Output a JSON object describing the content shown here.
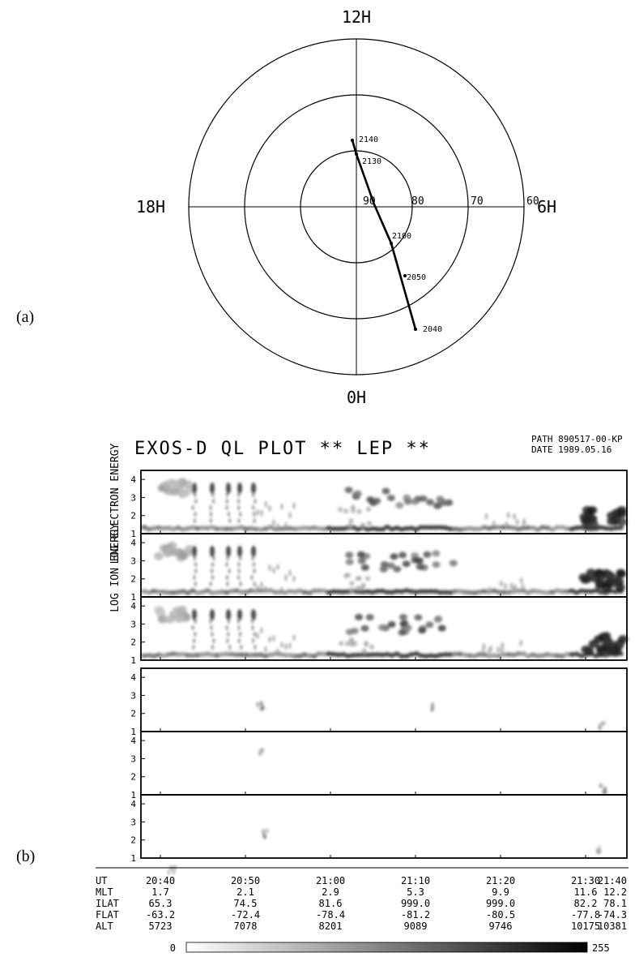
{
  "panel_labels": {
    "a": "(a)",
    "b": "(b)"
  },
  "polar": {
    "hour_labels": {
      "top": "12H",
      "left": "18H",
      "right": "6H",
      "bottom": "0H"
    },
    "lat_labels": [
      "90",
      "80",
      "70",
      "60"
    ],
    "track_times": [
      "2140",
      "2130",
      "2100",
      "2050",
      "2040"
    ]
  },
  "header": {
    "title": "EXOS-D QL PLOT ** LEP **",
    "path": "PATH 890517-00-KP",
    "date": "DATE 1989.05.16"
  },
  "axes": {
    "electron_ylabel": "LOG ELECTRON ENERGY",
    "ion_ylabel": "LOG ION ENERGY",
    "y_ticks": [
      "1",
      "2",
      "3",
      "4"
    ]
  },
  "orbit_table": {
    "rows": [
      {
        "name": "UT",
        "values": [
          "20:40",
          "20:50",
          "21:00",
          "21:10",
          "21:20",
          "21:30",
          "21:40"
        ]
      },
      {
        "name": "MLT",
        "values": [
          "1.7",
          "2.1",
          "2.9",
          "5.3",
          "9.9",
          "11.6",
          "12.2"
        ]
      },
      {
        "name": "ILAT",
        "values": [
          "65.3",
          "74.5",
          "81.6",
          "999.0",
          "999.0",
          "82.2",
          "78.1"
        ]
      },
      {
        "name": "FLAT",
        "values": [
          "-63.2",
          "-72.4",
          "-78.4",
          "-81.2",
          "-80.5",
          "-77.8",
          "-74.3"
        ]
      },
      {
        "name": "ALT",
        "values": [
          "5723",
          "7078",
          "8201",
          "9089",
          "9746",
          "10175",
          "10381"
        ]
      }
    ]
  },
  "colorbar": {
    "min_label": "0",
    "max_label": "255"
  },
  "chart_data": [
    {
      "type": "scatter",
      "title": "",
      "angular_labels": [
        "12H",
        "6H",
        "0H",
        "18H"
      ],
      "radial_labels": [
        "90",
        "80",
        "70",
        "60"
      ],
      "track": [
        {
          "time": "2140",
          "mlt": 12.1,
          "ilat": 82
        },
        {
          "time": "2130",
          "mlt": 12.0,
          "ilat": 84
        },
        {
          "time": "2100",
          "mlt": 2.5,
          "ilat": 83
        },
        {
          "time": "2050",
          "mlt": 1.9,
          "ilat": 74
        },
        {
          "time": "2040",
          "mlt": 1.7,
          "ilat": 65
        }
      ]
    },
    {
      "type": "heatmap",
      "title": "EXOS-D QL PLOT ** LEP **",
      "x_ticks": [
        "20:40",
        "20:50",
        "21:00",
        "21:10",
        "21:20",
        "21:30",
        "21:40"
      ],
      "y_ticks": [
        "1",
        "2",
        "3",
        "4"
      ],
      "color_range": [
        0,
        255
      ],
      "panels": [
        {
          "group": "LOG ELECTRON ENERGY",
          "ylim": [
            1,
            4.5
          ]
        },
        {
          "group": "LOG ELECTRON ENERGY",
          "ylim": [
            1,
            4.5
          ]
        },
        {
          "group": "LOG ELECTRON ENERGY",
          "ylim": [
            1,
            4.5
          ]
        },
        {
          "group": "LOG ION ENERGY",
          "ylim": [
            1,
            4.5
          ]
        },
        {
          "group": "LOG ION ENERGY",
          "ylim": [
            1,
            4.5
          ]
        },
        {
          "group": "LOG ION ENERGY",
          "ylim": [
            1,
            4.5
          ]
        }
      ]
    }
  ]
}
